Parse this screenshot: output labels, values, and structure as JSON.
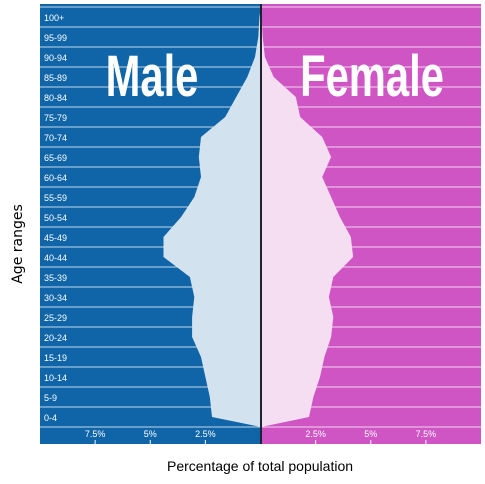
{
  "chart_data": {
    "type": "population-pyramid",
    "title": "",
    "xlabel": "Percentage of total population",
    "ylabel": "Age ranges",
    "panel_labels": {
      "male": "Male",
      "female": "Female"
    },
    "age_groups": [
      "0-4",
      "5-9",
      "10-14",
      "15-19",
      "20-24",
      "25-29",
      "30-34",
      "35-39",
      "40-44",
      "45-49",
      "50-54",
      "55-59",
      "60-64",
      "65-69",
      "70-74",
      "75-79",
      "80-84",
      "85-89",
      "90-94",
      "95-99",
      "100+"
    ],
    "male_percent": [
      2.2,
      2.3,
      2.5,
      2.7,
      3.1,
      3.1,
      3.0,
      3.2,
      4.4,
      4.4,
      3.6,
      3.0,
      2.7,
      2.8,
      2.7,
      1.6,
      1.1,
      0.6,
      0.25,
      0.1,
      0.05
    ],
    "female_percent": [
      2.2,
      2.4,
      2.7,
      2.9,
      3.2,
      3.3,
      3.1,
      3.3,
      4.2,
      4.1,
      3.6,
      3.2,
      2.8,
      3.2,
      2.8,
      1.8,
      1.6,
      0.6,
      0.2,
      0.1,
      0.05
    ],
    "x_ticks": [
      {
        "value": -7.5,
        "label": "7.5%"
      },
      {
        "value": -5,
        "label": "5%"
      },
      {
        "value": -2.5,
        "label": "2.5%"
      },
      {
        "value": 2.5,
        "label": "2.5%"
      },
      {
        "value": 5,
        "label": "5%"
      },
      {
        "value": 7.5,
        "label": "7.5%"
      }
    ],
    "xlim": [
      -10,
      10
    ],
    "colors": {
      "male_bg": "#0f65a8",
      "female_bg": "#cf55c4",
      "male_fill": "#d2e3ef",
      "female_fill": "#f5ddf2",
      "center_line": "#1f2230",
      "grid": "#ffffff"
    }
  }
}
